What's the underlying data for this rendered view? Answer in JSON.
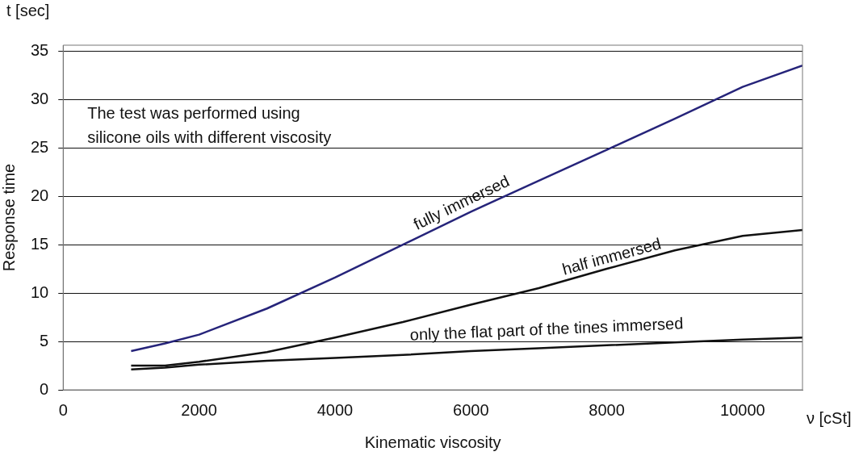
{
  "chart_data": {
    "type": "line",
    "xlabel": "Kinematic viscosity",
    "ylabel": "Response time",
    "x": [
      1000,
      1500,
      2000,
      3000,
      4000,
      5000,
      6000,
      7000,
      8000,
      9000,
      10000,
      10880
    ],
    "series": [
      {
        "name": "fully immersed",
        "color": "#26247a",
        "values": [
          4.0,
          4.8,
          5.7,
          8.4,
          11.6,
          15.0,
          18.4,
          21.6,
          24.8,
          28.0,
          31.3,
          33.5
        ]
      },
      {
        "name": "half immersed",
        "color": "#111111",
        "values": [
          2.5,
          2.5,
          2.9,
          3.9,
          5.4,
          7.0,
          8.8,
          10.5,
          12.5,
          14.4,
          15.9,
          16.5
        ]
      },
      {
        "name": "only the flat part of the tines immersed",
        "color": "#111111",
        "values": [
          2.1,
          2.3,
          2.6,
          3.0,
          3.3,
          3.6,
          4.0,
          4.3,
          4.6,
          4.9,
          5.2,
          5.4
        ]
      }
    ],
    "xlim": [
      0,
      10880
    ],
    "xticks": [
      0,
      2000,
      4000,
      6000,
      8000,
      10000
    ],
    "ylim": [
      0,
      35.6
    ],
    "yticks": [
      0,
      5,
      10,
      15,
      20,
      25,
      30,
      35
    ],
    "grid": "y",
    "legend": false,
    "marker": "none",
    "line_style": "solid",
    "annotations": [
      "The test was performed using\nsilicone oils with different viscosity",
      "t [sec]",
      "ν [cSt]"
    ]
  }
}
